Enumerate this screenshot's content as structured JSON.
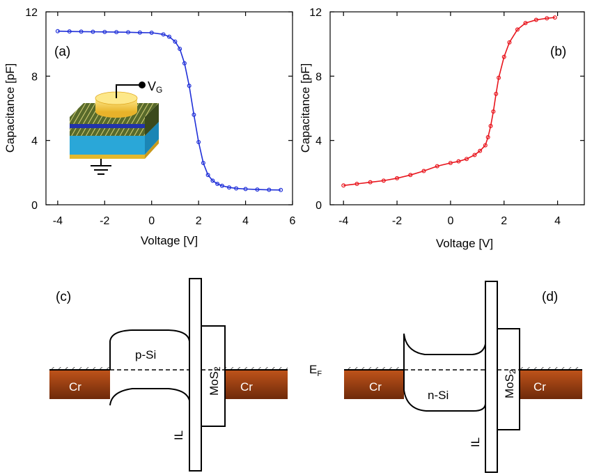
{
  "chart_data": [
    {
      "type": "line",
      "panel_label": "(a)",
      "xlabel": "Voltage [V]",
      "ylabel": "Capacitance [pF]",
      "xlim": [
        -4.5,
        6
      ],
      "ylim": [
        0,
        12
      ],
      "xticks": [
        -4,
        -2,
        0,
        2,
        4,
        6
      ],
      "xtick_labels": [
        "-4",
        "-2",
        "0",
        "2",
        "4",
        "6"
      ],
      "yticks": [
        0,
        4,
        8,
        12
      ],
      "ytick_labels": [
        "0",
        "4",
        "8",
        "12"
      ],
      "color": "#1f2fd8",
      "marker": "circle",
      "series": [
        {
          "x": [
            -4.0,
            -3.5,
            -3.0,
            -2.5,
            -2.0,
            -1.5,
            -1.0,
            -0.5,
            0.0,
            0.5,
            0.75,
            1.0,
            1.2,
            1.4,
            1.6,
            1.8,
            2.0,
            2.2,
            2.4,
            2.6,
            2.8,
            3.0,
            3.3,
            3.6,
            4.0,
            4.5,
            5.0,
            5.5
          ],
          "y": [
            10.8,
            10.78,
            10.77,
            10.76,
            10.75,
            10.74,
            10.73,
            10.71,
            10.7,
            10.6,
            10.45,
            10.15,
            9.7,
            8.8,
            7.4,
            5.6,
            3.9,
            2.6,
            1.85,
            1.5,
            1.3,
            1.18,
            1.08,
            1.02,
            0.98,
            0.95,
            0.93,
            0.92
          ]
        }
      ],
      "inset": {
        "gate_label": "V",
        "gate_subscript": "G"
      }
    },
    {
      "type": "line",
      "panel_label": "(b)",
      "xlabel": "Voltage [V]",
      "ylabel": "Capacitance [pF]",
      "xlim": [
        -4.5,
        5
      ],
      "ylim": [
        0,
        12
      ],
      "xticks": [
        -4,
        -2,
        0,
        2,
        4
      ],
      "xtick_labels": [
        "-4",
        "-2",
        "0",
        "2",
        "4"
      ],
      "yticks": [
        0,
        4,
        8,
        12
      ],
      "ytick_labels": [
        "0",
        "4",
        "8",
        "12"
      ],
      "color": "#e8141c",
      "marker": "circle",
      "series": [
        {
          "x": [
            -4.0,
            -3.5,
            -3.0,
            -2.5,
            -2.0,
            -1.5,
            -1.0,
            -0.5,
            0.0,
            0.3,
            0.6,
            0.9,
            1.1,
            1.3,
            1.4,
            1.5,
            1.6,
            1.7,
            1.8,
            2.0,
            2.2,
            2.5,
            2.8,
            3.2,
            3.6,
            3.9
          ],
          "y": [
            1.2,
            1.3,
            1.4,
            1.5,
            1.65,
            1.85,
            2.1,
            2.4,
            2.6,
            2.7,
            2.85,
            3.1,
            3.35,
            3.7,
            4.2,
            4.9,
            5.8,
            6.9,
            7.9,
            9.2,
            10.1,
            10.9,
            11.3,
            11.5,
            11.6,
            11.65
          ]
        }
      ]
    }
  ],
  "diagrams": {
    "c": {
      "panel_label": "(c)",
      "left_metal": "Cr",
      "semiconductor": "p-Si",
      "interlayer": "IL",
      "mos2_main": "MoS",
      "mos2_sub": "2",
      "right_metal": "Cr"
    },
    "d": {
      "panel_label": "(d)",
      "fermi_main": "E",
      "fermi_sub": "F",
      "left_metal": "Cr",
      "semiconductor": "n-Si",
      "interlayer": "IL",
      "mos2_main": "MoS",
      "mos2_sub": "2",
      "right_metal": "Cr"
    }
  },
  "colors": {
    "metal_gradient_top": "#c0541a",
    "metal_gradient_bottom": "#6e2a0a",
    "inset_gold": "#f5c842",
    "inset_blue": "#2aa7d8",
    "inset_layer_dark": "#223322",
    "inset_layer_blue": "#2233aa"
  }
}
